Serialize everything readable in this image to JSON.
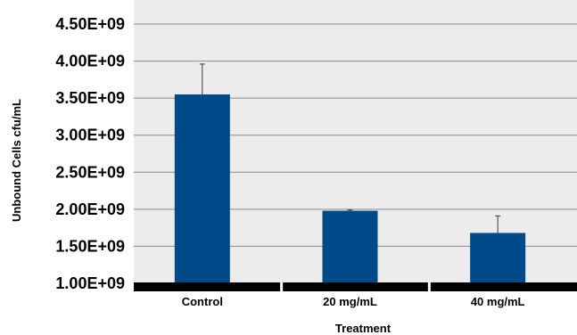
{
  "chart_data": {
    "type": "bar",
    "title": "",
    "xlabel": "Treatment",
    "ylabel": "Unbound Cells cfu/mL",
    "categories": [
      "Control",
      "20 mg/mL",
      "40 mg/mL"
    ],
    "values": [
      3550000000,
      1980000000,
      1680000000
    ],
    "error_bars": [
      410000000,
      10000000,
      230000000
    ],
    "ylim": [
      1000000000,
      4500000000
    ],
    "y_ticks": [
      1000000000,
      1500000000,
      2000000000,
      2500000000,
      3000000000,
      3500000000,
      4000000000,
      4500000000
    ],
    "y_tick_labels": [
      "1.00E+09",
      "1.50E+09",
      "2.00E+09",
      "2.50E+09",
      "3.00E+09",
      "3.50E+09",
      "4.00E+09",
      "4.50E+09"
    ],
    "grid": true,
    "bar_color": "#004a8a",
    "plot_background": "#ececec",
    "gridline_color": "#8c8c8c",
    "baseline_color": "#000000"
  }
}
